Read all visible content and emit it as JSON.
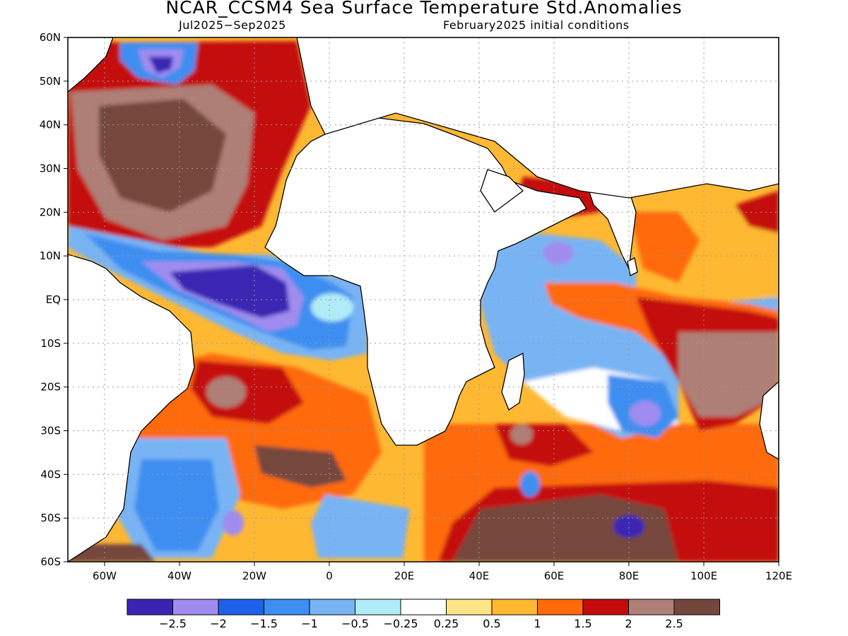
{
  "title": "NCAR_CCSM4 Sea Surface Temperature Std.Anomalies",
  "subtitle_left": "Jul2025−Sep2025",
  "subtitle_right": "February2025 initial conditions",
  "lat_labels": [
    "60N",
    "50N",
    "40N",
    "30N",
    "20N",
    "10N",
    "EQ",
    "10S",
    "20S",
    "30S",
    "40S",
    "50S",
    "60S"
  ],
  "lon_labels": [
    "60W",
    "40W",
    "20W",
    "0",
    "20E",
    "40E",
    "60E",
    "80E",
    "100E",
    "120E"
  ],
  "colorbar": {
    "colors": [
      "#3a25b3",
      "#a08cf0",
      "#1e60e8",
      "#3c8ef0",
      "#78b4f4",
      "#b0ecf8",
      "#ffffff",
      "#ffe488",
      "#ffb832",
      "#ff6a0a",
      "#c40a0a",
      "#ad7f76",
      "#74473d"
    ],
    "labels": [
      "−2.5",
      "−2",
      "−1.5",
      "−1",
      "−0.5",
      "−0.25",
      "0.25",
      "0.5",
      "1",
      "1.5",
      "2",
      "2.5"
    ]
  }
}
